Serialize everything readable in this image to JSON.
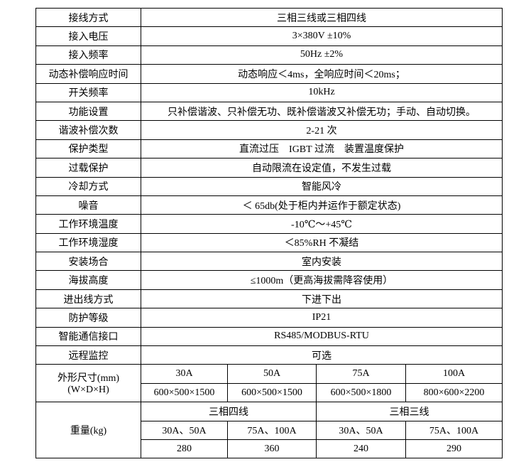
{
  "rows": [
    {
      "label": "接线方式",
      "value": "三相三线或三相四线"
    },
    {
      "label": "接入电压",
      "value": "3×380V ±10%"
    },
    {
      "label": "接入频率",
      "value": "50Hz ±2%"
    },
    {
      "label": "动态补偿响应时间",
      "value": "动态响应＜4ms，全响应时间＜20ms；"
    },
    {
      "label": "开关频率",
      "value": "10kHz"
    },
    {
      "label": "功能设置",
      "value": "只补偿谐波、只补偿无功、既补偿谐波又补偿无功；手动、自动切换。"
    },
    {
      "label": "谐波补偿次数",
      "value": "2-21 次"
    },
    {
      "label": "保护类型",
      "value": "直流过压　IGBT 过流　装置温度保护"
    },
    {
      "label": "过载保护",
      "value": "自动限流在设定值，不发生过载"
    },
    {
      "label": "冷却方式",
      "value": "智能风冷"
    },
    {
      "label": "噪音",
      "value": "＜ 65db(处于柜内并运作于额定状态)"
    },
    {
      "label": "工作环境温度",
      "value": "-10℃～+45℃"
    },
    {
      "label": "工作环境湿度",
      "value": "＜85%RH 不凝结"
    },
    {
      "label": "安装场合",
      "value": "室内安装"
    },
    {
      "label": "海拔高度",
      "value": "≤1000m（更高海拔需降容使用）"
    },
    {
      "label": "进出线方式",
      "value": "下进下出"
    },
    {
      "label": "防护等级",
      "value": "IP21"
    },
    {
      "label": "智能通信接口",
      "value": "RS485/MODBUS-RTU"
    },
    {
      "label": "远程监控",
      "value": "可选"
    }
  ],
  "dimensions": {
    "label_line1": "外形尺寸(mm)",
    "label_line2": "(W×D×H)",
    "ratings": [
      "30A",
      "50A",
      "75A",
      "100A"
    ],
    "sizes": [
      "600×500×1500",
      "600×500×1500",
      "600×500×1800",
      "800×600×2200"
    ]
  },
  "weight": {
    "label": "重量(kg)",
    "groups": [
      "三相四线",
      "三相三线"
    ],
    "ratings": [
      "30A、50A",
      "75A、100A",
      "30A、50A",
      "75A、100A"
    ],
    "values": [
      "280",
      "360",
      "240",
      "290"
    ]
  }
}
